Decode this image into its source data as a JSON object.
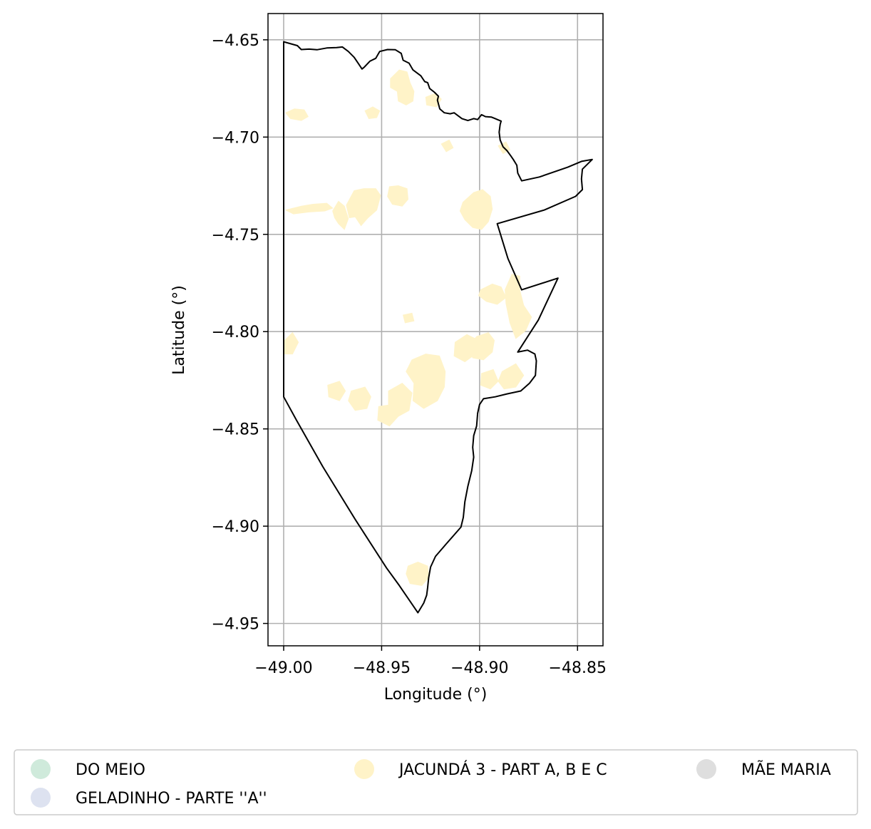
{
  "chart_data": {
    "type": "map",
    "xlabel": "Longitude (°)",
    "ylabel": "Latitude (°)",
    "xlim": [
      -49.008,
      -48.837
    ],
    "ylim": [
      -4.9615,
      -4.6365
    ],
    "grid": true,
    "x_ticks": [
      {
        "value": -49.0,
        "label": "−49.00"
      },
      {
        "value": -48.95,
        "label": "−48.95"
      },
      {
        "value": -48.9,
        "label": "−48.90"
      },
      {
        "value": -48.85,
        "label": "−48.85"
      }
    ],
    "y_ticks": [
      {
        "value": -4.65,
        "label": "−4.65"
      },
      {
        "value": -4.7,
        "label": "−4.70"
      },
      {
        "value": -4.75,
        "label": "−4.75"
      },
      {
        "value": -4.8,
        "label": "−4.80"
      },
      {
        "value": -4.85,
        "label": "−4.85"
      },
      {
        "value": -4.9,
        "label": "−4.90"
      },
      {
        "value": -4.95,
        "label": "−4.95"
      }
    ],
    "legend_placement": "bottom, below plot",
    "legend": [
      {
        "label": "DO MEIO",
        "color": "#cfeadb"
      },
      {
        "label": "GELADINHO - PARTE ''A''",
        "color": "#dde2f0"
      },
      {
        "label": "JACUNDÁ 3 - PART A, B E C",
        "color": "#fff3c8"
      },
      {
        "label": "MÃE MARIA",
        "color": "#dedede"
      }
    ],
    "boundary": [
      [
        -49.0,
        -4.651
      ],
      [
        -48.993,
        -4.653
      ],
      [
        -48.991,
        -4.655
      ],
      [
        -48.987,
        -4.6548
      ],
      [
        -48.983,
        -4.6551
      ],
      [
        -48.978,
        -4.6542
      ],
      [
        -48.973,
        -4.654
      ],
      [
        -48.97,
        -4.6537
      ],
      [
        -48.967,
        -4.656
      ],
      [
        -48.964,
        -4.659
      ],
      [
        -48.962,
        -4.662
      ],
      [
        -48.96,
        -4.665
      ],
      [
        -48.9588,
        -4.664
      ],
      [
        -48.956,
        -4.661
      ],
      [
        -48.953,
        -4.6595
      ],
      [
        -48.951,
        -4.656
      ],
      [
        -48.947,
        -4.655
      ],
      [
        -48.943,
        -4.6551
      ],
      [
        -48.94,
        -4.657
      ],
      [
        -48.939,
        -4.6605
      ],
      [
        -48.936,
        -4.662
      ],
      [
        -48.934,
        -4.6655
      ],
      [
        -48.93,
        -4.6685
      ],
      [
        -48.928,
        -4.6715
      ],
      [
        -48.9265,
        -4.672
      ],
      [
        -48.9255,
        -4.675
      ],
      [
        -48.923,
        -4.677
      ],
      [
        -48.921,
        -4.679
      ],
      [
        -48.9215,
        -4.681
      ],
      [
        -48.9203,
        -4.6855
      ],
      [
        -48.918,
        -4.6875
      ],
      [
        -48.915,
        -4.688
      ],
      [
        -48.913,
        -4.6875
      ],
      [
        -48.911,
        -4.689
      ],
      [
        -48.909,
        -4.6905
      ],
      [
        -48.906,
        -4.6915
      ],
      [
        -48.903,
        -4.6905
      ],
      [
        -48.901,
        -4.691
      ],
      [
        -48.899,
        -4.6885
      ],
      [
        -48.897,
        -4.6895
      ],
      [
        -48.894,
        -4.6897
      ],
      [
        -48.892,
        -4.6905
      ],
      [
        -48.889,
        -4.6918
      ],
      [
        -48.8895,
        -4.6935
      ],
      [
        -48.89,
        -4.6975
      ],
      [
        -48.8895,
        -4.7015
      ],
      [
        -48.888,
        -4.705
      ],
      [
        -48.886,
        -4.707
      ],
      [
        -48.8842,
        -4.7095
      ],
      [
        -48.8828,
        -4.7115
      ],
      [
        -48.881,
        -4.7145
      ],
      [
        -48.8805,
        -4.7185
      ],
      [
        -48.8785,
        -4.7225
      ],
      [
        -48.8695,
        -4.7205
      ],
      [
        -48.855,
        -4.7155
      ],
      [
        -48.848,
        -4.7125
      ],
      [
        -48.8425,
        -4.7115
      ],
      [
        -48.8475,
        -4.7165
      ],
      [
        -48.848,
        -4.7215
      ],
      [
        -48.8475,
        -4.727
      ],
      [
        -48.851,
        -4.7305
      ],
      [
        -48.867,
        -4.7375
      ],
      [
        -48.891,
        -4.7445
      ],
      [
        -48.8855,
        -4.7625
      ],
      [
        -48.8785,
        -4.7785
      ],
      [
        -48.86,
        -4.7725
      ],
      [
        -48.87,
        -4.794
      ],
      [
        -48.8805,
        -4.8105
      ],
      [
        -48.8755,
        -4.8095
      ],
      [
        -48.8718,
        -4.8115
      ],
      [
        -48.871,
        -4.815
      ],
      [
        -48.8715,
        -4.8225
      ],
      [
        -48.8745,
        -4.8265
      ],
      [
        -48.879,
        -4.8305
      ],
      [
        -48.886,
        -4.832
      ],
      [
        -48.892,
        -4.8335
      ],
      [
        -48.898,
        -4.8345
      ],
      [
        -48.9,
        -4.8375
      ],
      [
        -48.901,
        -4.842
      ],
      [
        -48.9015,
        -4.8485
      ],
      [
        -48.903,
        -4.8535
      ],
      [
        -48.9035,
        -4.8595
      ],
      [
        -48.903,
        -4.8645
      ],
      [
        -48.904,
        -4.8715
      ],
      [
        -48.906,
        -4.8795
      ],
      [
        -48.9075,
        -4.8875
      ],
      [
        -48.9083,
        -4.8955
      ],
      [
        -48.9095,
        -4.9005
      ],
      [
        -48.9165,
        -4.9085
      ],
      [
        -48.9225,
        -4.9155
      ],
      [
        -48.925,
        -4.921
      ],
      [
        -48.926,
        -4.9265
      ],
      [
        -48.9265,
        -4.9315
      ],
      [
        -48.927,
        -4.9355
      ],
      [
        -48.9285,
        -4.9395
      ],
      [
        -48.9315,
        -4.9445
      ],
      [
        -48.941,
        -4.9305
      ],
      [
        -48.9475,
        -4.9215
      ],
      [
        -48.9635,
        -4.8965
      ],
      [
        -48.98,
        -4.8695
      ],
      [
        -48.9935,
        -4.8455
      ],
      [
        -49.0,
        -4.8335
      ]
    ],
    "polygons": [
      [
        [
          -48.999,
          -4.7375
        ],
        [
          -48.991,
          -4.7355
        ],
        [
          -48.985,
          -4.7345
        ],
        [
          -48.978,
          -4.734
        ],
        [
          -48.975,
          -4.7365
        ],
        [
          -48.979,
          -4.738
        ],
        [
          -48.987,
          -4.7385
        ],
        [
          -48.995,
          -4.7395
        ]
      ],
      [
        [
          -48.975,
          -4.738
        ],
        [
          -48.972,
          -4.733
        ],
        [
          -48.969,
          -4.7355
        ],
        [
          -48.967,
          -4.742
        ],
        [
          -48.969,
          -4.7475
        ],
        [
          -48.972,
          -4.7445
        ],
        [
          -48.974,
          -4.7415
        ]
      ],
      [
        [
          -48.968,
          -4.735
        ],
        [
          -48.964,
          -4.7275
        ],
        [
          -48.959,
          -4.7265
        ],
        [
          -48.953,
          -4.7265
        ],
        [
          -48.9505,
          -4.73
        ],
        [
          -48.9525,
          -4.7375
        ],
        [
          -48.957,
          -4.7415
        ],
        [
          -48.9605,
          -4.7455
        ],
        [
          -48.9635,
          -4.741
        ],
        [
          -48.9665,
          -4.7415
        ]
      ],
      [
        [
          -48.946,
          -4.7255
        ],
        [
          -48.9415,
          -4.725
        ],
        [
          -48.937,
          -4.7265
        ],
        [
          -48.9365,
          -4.732
        ],
        [
          -48.9395,
          -4.7355
        ],
        [
          -48.9445,
          -4.7345
        ],
        [
          -48.947,
          -4.7305
        ]
      ],
      [
        [
          -48.9085,
          -4.7335
        ],
        [
          -48.903,
          -4.7285
        ],
        [
          -48.8985,
          -4.727
        ],
        [
          -48.8945,
          -4.7305
        ],
        [
          -48.8935,
          -4.737
        ],
        [
          -48.8955,
          -4.7435
        ],
        [
          -48.899,
          -4.7475
        ],
        [
          -48.9035,
          -4.7465
        ],
        [
          -48.9075,
          -4.7425
        ],
        [
          -48.91,
          -4.738
        ]
      ],
      [
        [
          -48.9455,
          -4.67
        ],
        [
          -48.941,
          -4.6655
        ],
        [
          -48.937,
          -4.6665
        ],
        [
          -48.9355,
          -4.672
        ],
        [
          -48.9335,
          -4.6765
        ],
        [
          -48.934,
          -4.6815
        ],
        [
          -48.9375,
          -4.6835
        ],
        [
          -48.9415,
          -4.6815
        ],
        [
          -48.942,
          -4.6765
        ],
        [
          -48.9455,
          -4.6745
        ]
      ],
      [
        [
          -48.999,
          -4.6875
        ],
        [
          -48.9945,
          -4.6855
        ],
        [
          -48.9895,
          -4.686
        ],
        [
          -48.9875,
          -4.6895
        ],
        [
          -48.991,
          -4.6915
        ],
        [
          -48.9965,
          -4.6905
        ]
      ],
      [
        [
          -48.9585,
          -4.6865
        ],
        [
          -48.9545,
          -4.6845
        ],
        [
          -48.951,
          -4.6865
        ],
        [
          -48.9525,
          -4.69
        ],
        [
          -48.9565,
          -4.6905
        ]
      ],
      [
        [
          -48.887,
          -4.7785
        ],
        [
          -48.8835,
          -4.7705
        ],
        [
          -48.8795,
          -4.7715
        ],
        [
          -48.8795,
          -4.7785
        ],
        [
          -48.8775,
          -4.7865
        ],
        [
          -48.8735,
          -4.7925
        ],
        [
          -48.8765,
          -4.7995
        ],
        [
          -48.8815,
          -4.8035
        ],
        [
          -48.8845,
          -4.7955
        ],
        [
          -48.8865,
          -4.7855
        ]
      ],
      [
        [
          -48.8995,
          -4.7785
        ],
        [
          -48.8935,
          -4.7755
        ],
        [
          -48.889,
          -4.777
        ],
        [
          -48.8865,
          -4.7825
        ],
        [
          -48.891,
          -4.786
        ],
        [
          -48.8965,
          -4.7845
        ],
        [
          -48.9005,
          -4.7815
        ]
      ],
      [
        [
          -48.9015,
          -4.8025
        ],
        [
          -48.8955,
          -4.8005
        ],
        [
          -48.8925,
          -4.8045
        ],
        [
          -48.8935,
          -4.8105
        ],
        [
          -48.898,
          -4.8145
        ],
        [
          -48.9035,
          -4.8135
        ],
        [
          -48.9055,
          -4.8075
        ]
      ],
      [
        [
          -48.9125,
          -4.8055
        ],
        [
          -48.9065,
          -4.8015
        ],
        [
          -48.9015,
          -4.804
        ],
        [
          -48.902,
          -4.8115
        ],
        [
          -48.9075,
          -4.8155
        ],
        [
          -48.913,
          -4.8125
        ]
      ],
      [
        [
          -48.9345,
          -4.8145
        ],
        [
          -48.9275,
          -4.8115
        ],
        [
          -48.9205,
          -4.8125
        ],
        [
          -48.9175,
          -4.8205
        ],
        [
          -48.918,
          -4.8285
        ],
        [
          -48.9215,
          -4.8355
        ],
        [
          -48.9285,
          -4.8395
        ],
        [
          -48.934,
          -4.8355
        ],
        [
          -48.9335,
          -4.8265
        ],
        [
          -48.9375,
          -4.8205
        ]
      ],
      [
        [
          -48.9465,
          -4.8305
        ],
        [
          -48.9395,
          -4.8265
        ],
        [
          -48.9345,
          -4.8315
        ],
        [
          -48.936,
          -4.8405
        ],
        [
          -48.9415,
          -4.8435
        ],
        [
          -48.9465,
          -4.8395
        ]
      ],
      [
        [
          -48.9515,
          -4.8385
        ],
        [
          -48.9445,
          -4.8375
        ],
        [
          -48.9415,
          -4.8435
        ],
        [
          -48.946,
          -4.8485
        ],
        [
          -48.952,
          -4.8455
        ]
      ],
      [
        [
          -48.9655,
          -4.8305
        ],
        [
          -48.9585,
          -4.8285
        ],
        [
          -48.9555,
          -4.8335
        ],
        [
          -48.9575,
          -4.8395
        ],
        [
          -48.9635,
          -4.8405
        ],
        [
          -48.967,
          -4.8355
        ]
      ],
      [
        [
          -48.9775,
          -4.8275
        ],
        [
          -48.9715,
          -4.8255
        ],
        [
          -48.9685,
          -4.8305
        ],
        [
          -48.9715,
          -4.8355
        ],
        [
          -48.977,
          -4.8335
        ]
      ],
      [
        [
          -48.8885,
          -4.8205
        ],
        [
          -48.8815,
          -4.8165
        ],
        [
          -48.8775,
          -4.8225
        ],
        [
          -48.8815,
          -4.8285
        ],
        [
          -48.8875,
          -4.8295
        ],
        [
          -48.8905,
          -4.8255
        ]
      ],
      [
        [
          -48.899,
          -4.8215
        ],
        [
          -48.893,
          -4.8195
        ],
        [
          -48.8905,
          -4.8255
        ],
        [
          -48.8945,
          -4.8295
        ],
        [
          -48.8995,
          -4.8275
        ]
      ],
      [
        [
          -48.9995,
          -4.8045
        ],
        [
          -48.9955,
          -4.8005
        ],
        [
          -48.9925,
          -4.8055
        ],
        [
          -48.9955,
          -4.8115
        ],
        [
          -48.9995,
          -4.8115
        ]
      ],
      [
        [
          -48.9365,
          -4.9205
        ],
        [
          -48.9315,
          -4.9185
        ],
        [
          -48.9265,
          -4.9205
        ],
        [
          -48.926,
          -4.9265
        ],
        [
          -48.9295,
          -4.9305
        ],
        [
          -48.9355,
          -4.9295
        ],
        [
          -48.9375,
          -4.9245
        ]
      ],
      [
        [
          -48.939,
          -4.7915
        ],
        [
          -48.9345,
          -4.7905
        ],
        [
          -48.9335,
          -4.7945
        ],
        [
          -48.938,
          -4.7955
        ]
      ],
      [
        [
          -48.9275,
          -4.6795
        ],
        [
          -48.9225,
          -4.6775
        ],
        [
          -48.9195,
          -4.6805
        ],
        [
          -48.922,
          -4.6845
        ],
        [
          -48.927,
          -4.6835
        ]
      ],
      [
        [
          -48.9195,
          -4.7035
        ],
        [
          -48.9155,
          -4.7015
        ],
        [
          -48.9135,
          -4.7055
        ],
        [
          -48.917,
          -4.7075
        ]
      ],
      [
        [
          -48.8905,
          -4.7045
        ],
        [
          -48.8865,
          -4.7025
        ],
        [
          -48.8845,
          -4.7065
        ],
        [
          -48.888,
          -4.7085
        ]
      ]
    ]
  }
}
